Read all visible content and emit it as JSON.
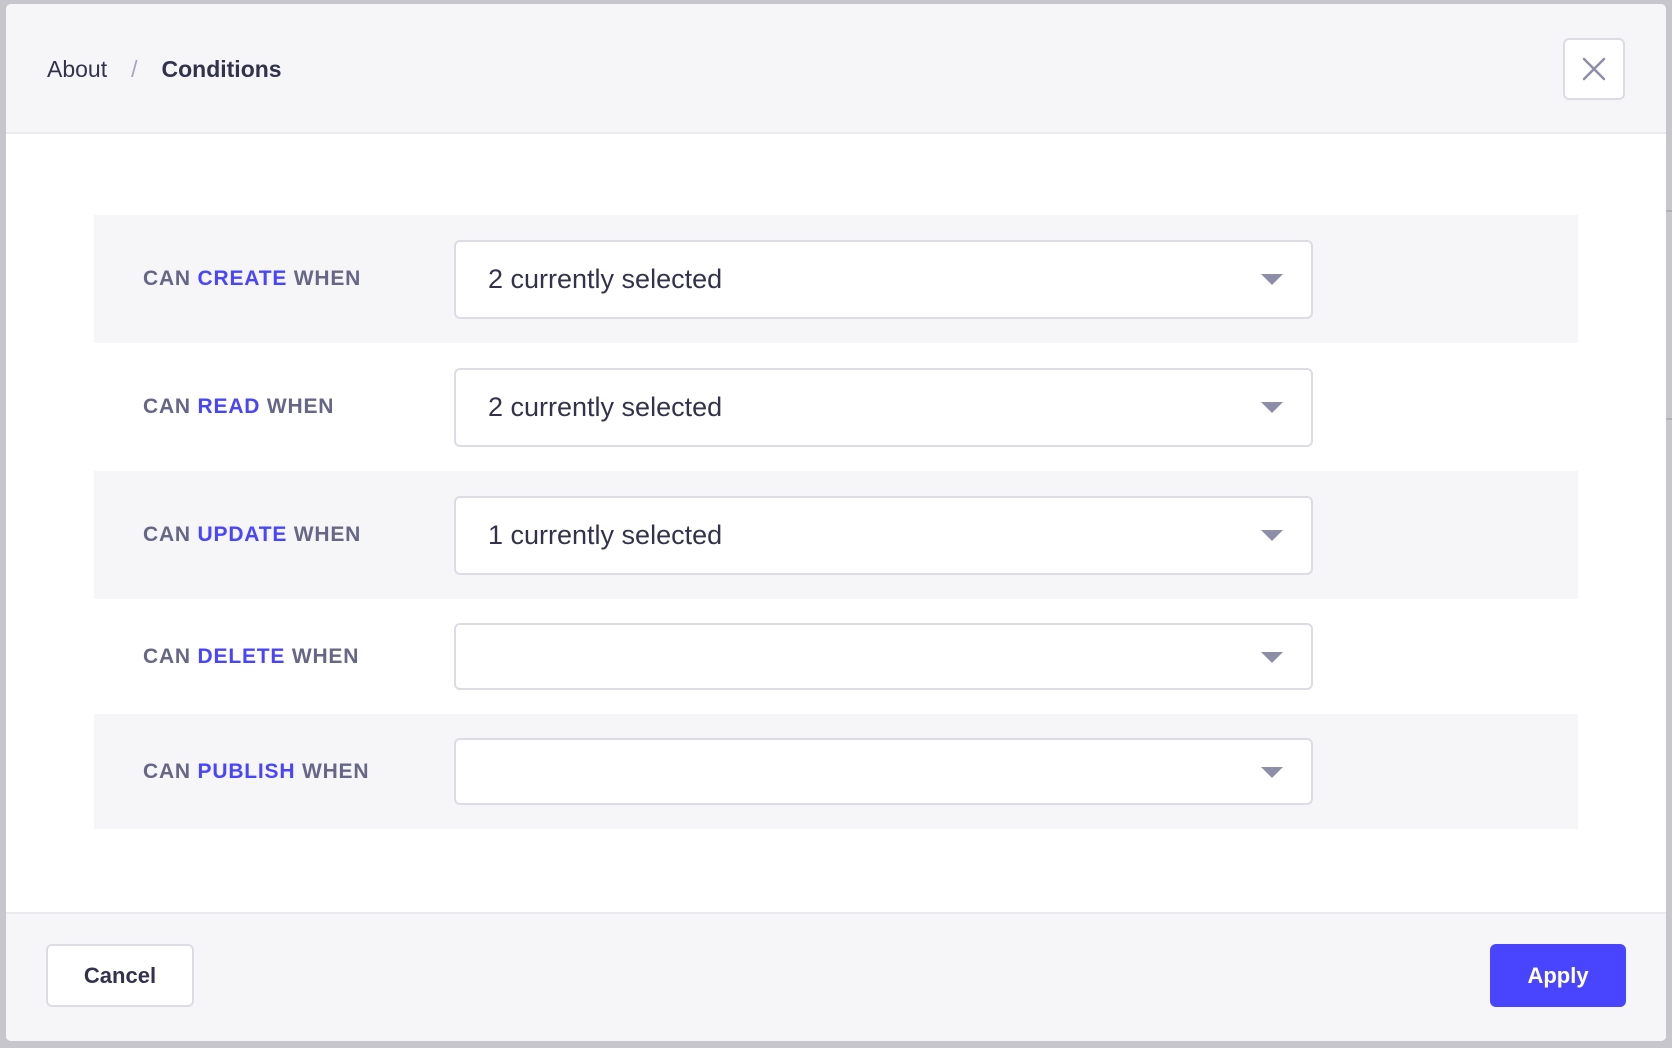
{
  "header": {
    "breadcrumbs": [
      "About",
      "Conditions"
    ],
    "separator": "/",
    "close_icon": "close-icon"
  },
  "conditions": [
    {
      "prefix": "CAN",
      "verb": "CREATE",
      "suffix": "WHEN",
      "value": "2 currently selected"
    },
    {
      "prefix": "CAN",
      "verb": "READ",
      "suffix": "WHEN",
      "value": "2 currently selected"
    },
    {
      "prefix": "CAN",
      "verb": "UPDATE",
      "suffix": "WHEN",
      "value": "1 currently selected"
    },
    {
      "prefix": "CAN",
      "verb": "DELETE",
      "suffix": "WHEN",
      "value": ""
    },
    {
      "prefix": "CAN",
      "verb": "PUBLISH",
      "suffix": "WHEN",
      "value": ""
    }
  ],
  "footer": {
    "cancel_label": "Cancel",
    "apply_label": "Apply"
  },
  "colors": {
    "accent": "#4945ff",
    "label": "#666687",
    "text": "#32324d"
  }
}
